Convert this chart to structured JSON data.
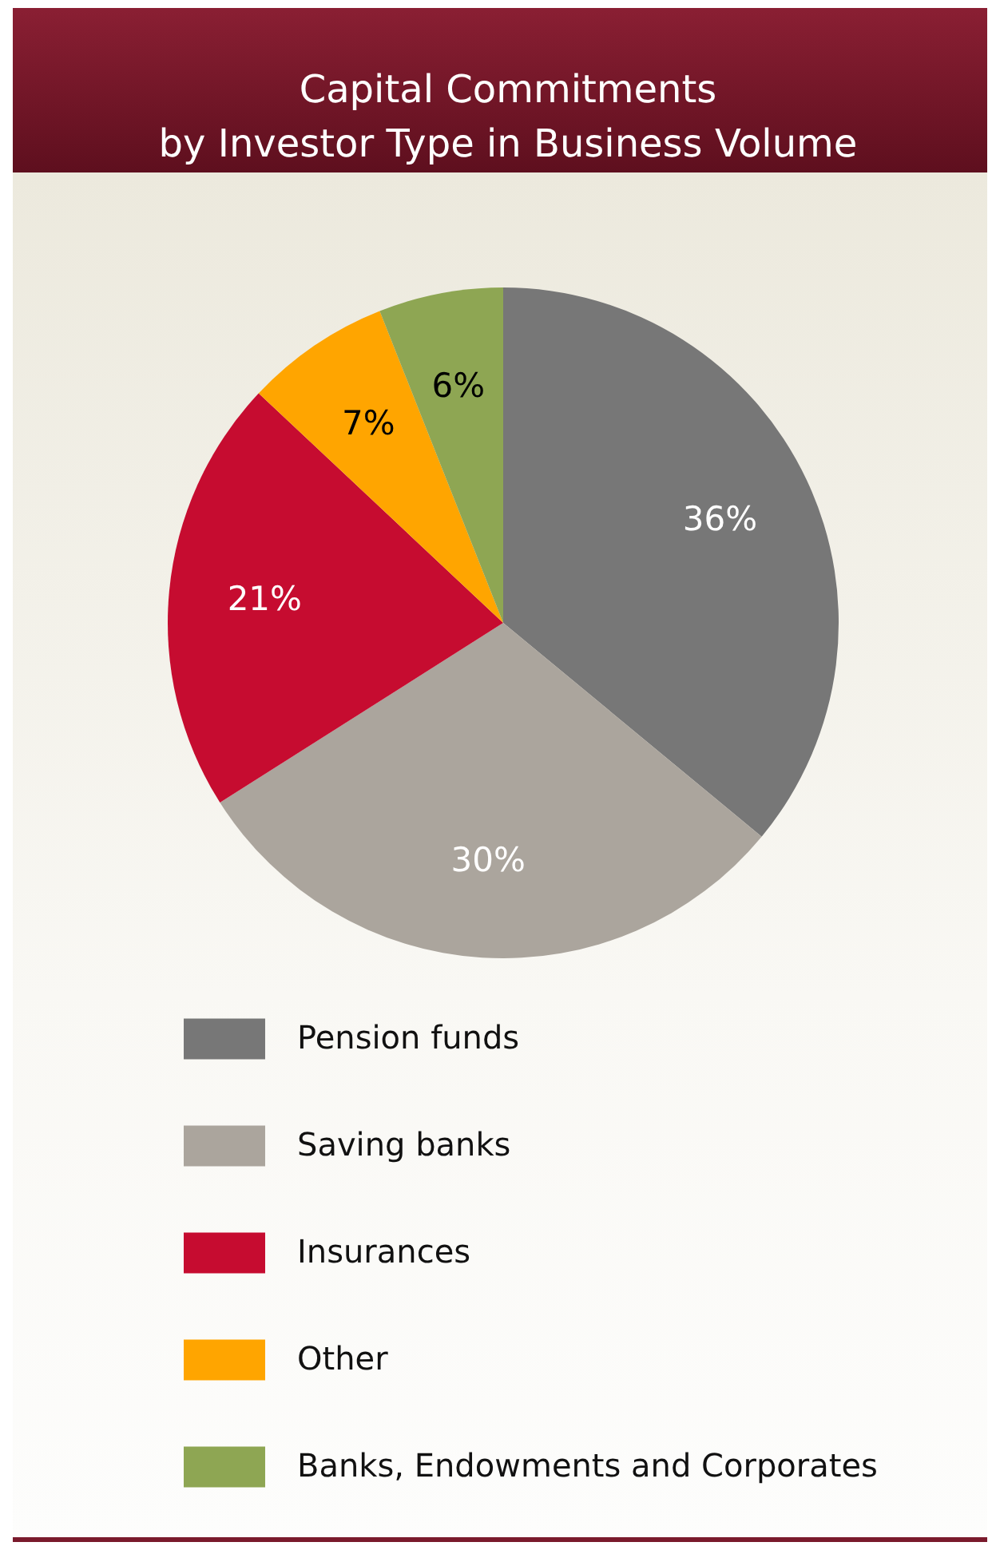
{
  "chart_data": {
    "type": "pie",
    "title": "Capital Commitments\nby Investor Type in Business Volume",
    "categories": [
      "Pension funds",
      "Saving banks",
      "Insurances",
      "Other",
      "Banks, Endowments and Corporates"
    ],
    "values": [
      36,
      30,
      21,
      7,
      6
    ],
    "colors": [
      "#777777",
      "#aba59d",
      "#c60c30",
      "#ffa500",
      "#8ea653"
    ],
    "value_labels": [
      "36%",
      "30%",
      "21%",
      "7%",
      "6%"
    ],
    "legend": "bottom"
  }
}
